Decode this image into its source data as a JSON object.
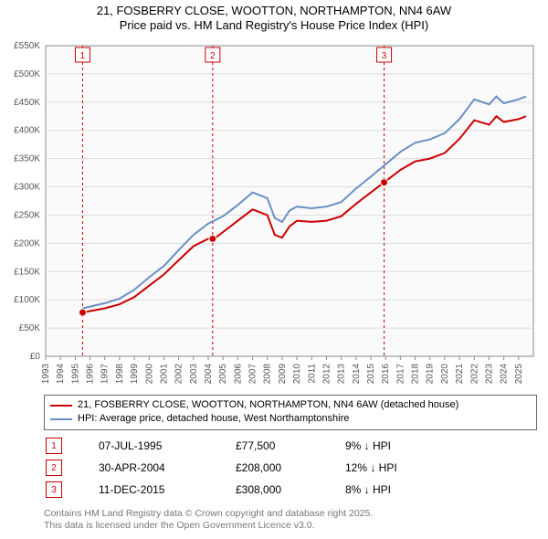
{
  "title": {
    "line1": "21, FOSBERRY CLOSE, WOOTTON, NORTHAMPTON, NN4 6AW",
    "line2": "Price paid vs. HM Land Registry's House Price Index (HPI)"
  },
  "chart": {
    "type": "line",
    "background_color": "#ffffff",
    "plot_background_color": "#fafafa",
    "grid_color": "#dddddd",
    "axis_color": "#888888",
    "ylim": [
      0,
      550000
    ],
    "ytick_step": 50000,
    "yticks_labels": [
      "£0",
      "£50K",
      "£100K",
      "£150K",
      "£200K",
      "£250K",
      "£300K",
      "£350K",
      "£400K",
      "£450K",
      "£500K",
      "£550K"
    ],
    "xlim": [
      1993,
      2026
    ],
    "xticks": [
      1993,
      1994,
      1995,
      1996,
      1997,
      1998,
      1999,
      2000,
      2001,
      2002,
      2003,
      2004,
      2005,
      2006,
      2007,
      2008,
      2009,
      2010,
      2011,
      2012,
      2013,
      2014,
      2015,
      2016,
      2017,
      2018,
      2019,
      2020,
      2021,
      2022,
      2023,
      2024,
      2025
    ],
    "label_fontsize": 10,
    "series": {
      "price_paid": {
        "color": "#cc0000",
        "line_width": 2,
        "points": [
          [
            1995.5,
            77500
          ],
          [
            1996,
            80000
          ],
          [
            1997,
            85000
          ],
          [
            1998,
            92000
          ],
          [
            1999,
            105000
          ],
          [
            2000,
            125000
          ],
          [
            2001,
            145000
          ],
          [
            2002,
            170000
          ],
          [
            2003,
            195000
          ],
          [
            2004,
            208000
          ],
          [
            2004.5,
            210000
          ],
          [
            2005,
            220000
          ],
          [
            2006,
            240000
          ],
          [
            2007,
            260000
          ],
          [
            2008,
            250000
          ],
          [
            2008.5,
            215000
          ],
          [
            2009,
            210000
          ],
          [
            2009.5,
            230000
          ],
          [
            2010,
            240000
          ],
          [
            2011,
            238000
          ],
          [
            2012,
            240000
          ],
          [
            2013,
            248000
          ],
          [
            2014,
            270000
          ],
          [
            2015,
            290000
          ],
          [
            2015.9,
            308000
          ],
          [
            2016,
            310000
          ],
          [
            2017,
            330000
          ],
          [
            2018,
            345000
          ],
          [
            2019,
            350000
          ],
          [
            2020,
            360000
          ],
          [
            2021,
            385000
          ],
          [
            2022,
            418000
          ],
          [
            2023,
            410000
          ],
          [
            2023.5,
            425000
          ],
          [
            2024,
            415000
          ],
          [
            2025,
            420000
          ],
          [
            2025.5,
            425000
          ]
        ]
      },
      "hpi": {
        "color": "#6a8fc7",
        "line_width": 2,
        "points": [
          [
            1995.5,
            85000
          ],
          [
            1996,
            88000
          ],
          [
            1997,
            94000
          ],
          [
            1998,
            102000
          ],
          [
            1999,
            118000
          ],
          [
            2000,
            140000
          ],
          [
            2001,
            160000
          ],
          [
            2002,
            188000
          ],
          [
            2003,
            215000
          ],
          [
            2004,
            235000
          ],
          [
            2005,
            248000
          ],
          [
            2006,
            268000
          ],
          [
            2007,
            290000
          ],
          [
            2008,
            280000
          ],
          [
            2008.5,
            245000
          ],
          [
            2009,
            238000
          ],
          [
            2009.5,
            258000
          ],
          [
            2010,
            265000
          ],
          [
            2011,
            262000
          ],
          [
            2012,
            265000
          ],
          [
            2013,
            273000
          ],
          [
            2014,
            297000
          ],
          [
            2015,
            318000
          ],
          [
            2016,
            340000
          ],
          [
            2017,
            362000
          ],
          [
            2018,
            378000
          ],
          [
            2019,
            384000
          ],
          [
            2020,
            395000
          ],
          [
            2021,
            420000
          ],
          [
            2022,
            455000
          ],
          [
            2023,
            446000
          ],
          [
            2023.5,
            460000
          ],
          [
            2024,
            448000
          ],
          [
            2025,
            455000
          ],
          [
            2025.5,
            460000
          ]
        ]
      }
    },
    "markers": [
      {
        "n": "1",
        "x": 1995.5,
        "color": "#cc0000"
      },
      {
        "n": "2",
        "x": 2004.3,
        "color": "#cc0000"
      },
      {
        "n": "3",
        "x": 2015.9,
        "color": "#cc0000"
      }
    ],
    "sale_points": [
      {
        "x": 1995.5,
        "y": 77500,
        "color": "#cc0000"
      },
      {
        "x": 2004.3,
        "y": 208000,
        "color": "#cc0000"
      },
      {
        "x": 2015.9,
        "y": 308000,
        "color": "#cc0000"
      }
    ]
  },
  "legend": {
    "items": [
      {
        "color": "#cc0000",
        "label": "21, FOSBERRY CLOSE, WOOTTON, NORTHAMPTON, NN4 6AW (detached house)"
      },
      {
        "color": "#6a8fc7",
        "label": "HPI: Average price, detached house, West Northamptonshire"
      }
    ]
  },
  "marker_rows": [
    {
      "n": "1",
      "color": "#cc0000",
      "date": "07-JUL-1995",
      "price": "£77,500",
      "diff": "9% ↓ HPI"
    },
    {
      "n": "2",
      "color": "#cc0000",
      "date": "30-APR-2004",
      "price": "£208,000",
      "diff": "12% ↓ HPI"
    },
    {
      "n": "3",
      "color": "#cc0000",
      "date": "11-DEC-2015",
      "price": "£308,000",
      "diff": "8% ↓ HPI"
    }
  ],
  "footer": {
    "line1": "Contains HM Land Registry data © Crown copyright and database right 2025.",
    "line2": "This data is licensed under the Open Government Licence v3.0."
  }
}
